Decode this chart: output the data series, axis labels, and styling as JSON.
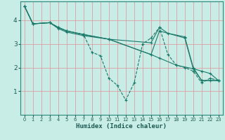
{
  "xlabel": "Humidex (Indice chaleur)",
  "bg_color": "#c8ece6",
  "grid_color": "#dda0a0",
  "line_color": "#1a7a6a",
  "xlim": [
    -0.5,
    23.5
  ],
  "ylim": [
    0,
    4.8
  ],
  "yticks": [
    1,
    2,
    3,
    4
  ],
  "xticks": [
    0,
    1,
    2,
    3,
    4,
    5,
    6,
    7,
    8,
    9,
    10,
    11,
    12,
    13,
    14,
    15,
    16,
    17,
    18,
    19,
    20,
    21,
    22,
    23
  ],
  "lines": [
    {
      "x": [
        0,
        1,
        3,
        4,
        5,
        7,
        8,
        9,
        10,
        11,
        12,
        13,
        14,
        15,
        16,
        17,
        18,
        19,
        20,
        21,
        22,
        23
      ],
      "y": [
        4.6,
        3.85,
        3.9,
        3.7,
        3.55,
        3.4,
        2.65,
        2.5,
        1.55,
        1.25,
        0.62,
        1.35,
        3.0,
        3.25,
        3.7,
        2.55,
        2.1,
        2.0,
        1.85,
        1.35,
        1.55,
        1.45
      ],
      "style": "dashed"
    },
    {
      "x": [
        0,
        1,
        3,
        4,
        5,
        7,
        10,
        15,
        16,
        18,
        20,
        21,
        22,
        23
      ],
      "y": [
        4.6,
        3.85,
        3.9,
        3.7,
        3.55,
        3.4,
        3.2,
        2.55,
        2.4,
        2.1,
        1.95,
        1.85,
        1.75,
        1.45
      ],
      "style": "solid"
    },
    {
      "x": [
        0,
        1,
        3,
        4,
        5,
        7,
        10,
        15,
        16,
        17,
        19,
        20,
        21,
        23
      ],
      "y": [
        4.6,
        3.85,
        3.9,
        3.65,
        3.5,
        3.35,
        3.2,
        3.05,
        3.7,
        3.45,
        3.3,
        2.0,
        1.45,
        1.45
      ],
      "style": "solid"
    },
    {
      "x": [
        0,
        1,
        3,
        4,
        5,
        7,
        10,
        15,
        16,
        19,
        20,
        21,
        22,
        23
      ],
      "y": [
        4.6,
        3.85,
        3.9,
        3.7,
        3.55,
        3.4,
        3.2,
        2.55,
        3.55,
        3.25,
        1.95,
        1.45,
        1.45,
        1.45
      ],
      "style": "solid"
    }
  ]
}
